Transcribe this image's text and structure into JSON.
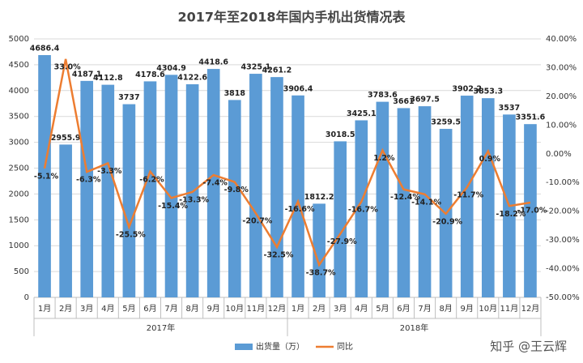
{
  "chart_data": {
    "type": "bar-line",
    "title": "2017年至2018年国内手机出货情况表",
    "categories": [
      "1月",
      "2月",
      "3月",
      "4月",
      "5月",
      "6月",
      "7月",
      "8月",
      "9月",
      "10月",
      "11月",
      "12月",
      "1月",
      "2月",
      "3月",
      "4月",
      "5月",
      "6月",
      "7月",
      "8月",
      "9月",
      "10月",
      "11月",
      "12月"
    ],
    "groups": [
      "2017年",
      "2018年"
    ],
    "series": [
      {
        "name": "出货量（万）",
        "type": "bar",
        "color": "#5b9bd5",
        "values": [
          4686.4,
          2955.9,
          4187.1,
          4112.8,
          3737,
          4178.6,
          4304.9,
          4122.6,
          4418.6,
          3818,
          4325.1,
          4261.2,
          3906.4,
          1812.2,
          3018.5,
          3425.1,
          3783.6,
          3661,
          3697.5,
          3259.5,
          3902.2,
          3853.3,
          3537,
          3351.6
        ]
      },
      {
        "name": "同比",
        "type": "line",
        "axis": "y2",
        "color": "#ed7d31",
        "values": [
          -5.1,
          33.0,
          -6.3,
          -3.3,
          -25.5,
          -6.2,
          -15.4,
          -13.3,
          -7.4,
          -9.8,
          -20.7,
          -32.5,
          -16.6,
          -38.7,
          -27.9,
          -16.7,
          1.2,
          -12.4,
          -14.1,
          -20.9,
          -11.7,
          0.9,
          -18.2,
          -17.0
        ],
        "value_labels": [
          "-5.1%",
          "33.0%",
          "-6.3%",
          "-3.3%",
          "-25.5%",
          "-6.2%",
          "-15.4%",
          "-13.3%",
          "-7.4%",
          "-9.8%",
          "-20.7%",
          "-32.5%",
          "-16.6%",
          "-38.7%",
          "-27.9%",
          "-16.7%",
          "1.2%",
          "-12.4%",
          "-14.1%",
          "-20.9%",
          "-11.7%",
          "0.9%",
          "-18.2%",
          "-17.0%"
        ]
      }
    ],
    "ylim": [
      0,
      5000
    ],
    "yticks": [
      0,
      500,
      1000,
      1500,
      2000,
      2500,
      3000,
      3500,
      4000,
      4500,
      5000
    ],
    "y2lim": [
      -50,
      40
    ],
    "y2ticks": [
      {
        "value": -50,
        "label": "-50.00%"
      },
      {
        "value": -40,
        "label": "-40.00%"
      },
      {
        "value": -30,
        "label": "-30.00%"
      },
      {
        "value": -20,
        "label": "-20.00%"
      },
      {
        "value": -10,
        "label": "-10.00%"
      },
      {
        "value": 0,
        "label": "0.00%"
      },
      {
        "value": 10,
        "label": "10.00%"
      },
      {
        "value": 20,
        "label": "20.00%"
      },
      {
        "value": 30,
        "label": "30.00%"
      },
      {
        "value": 40,
        "label": "40.00%"
      }
    ],
    "grid": true,
    "legend": "bottom",
    "watermark": "知乎 @王云辉"
  }
}
